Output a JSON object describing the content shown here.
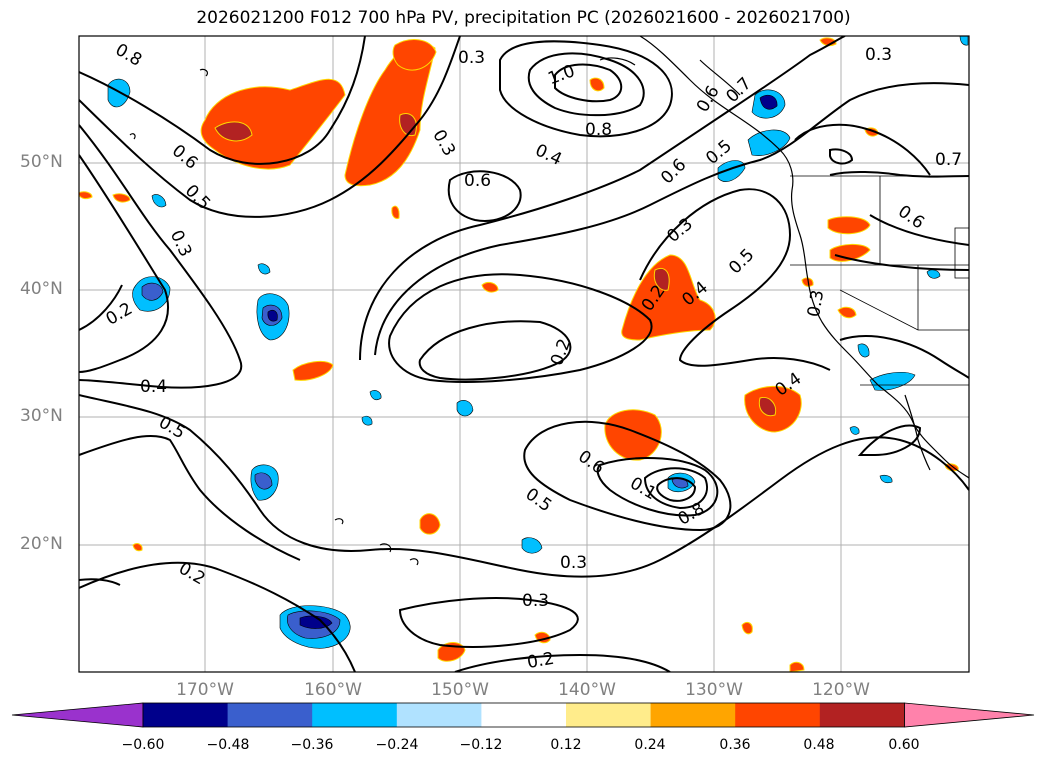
{
  "title": "2026021200 F012 700 hPa PV, precipitation PC (2026021600 - 2026021700)",
  "map": {
    "lat_labels": [
      "50°N",
      "40°N",
      "30°N",
      "20°N"
    ],
    "lon_labels": [
      "170°W",
      "160°W",
      "150°W",
      "140°W",
      "130°W",
      "120°W"
    ],
    "contour_labels": [
      "0.8",
      "0.6",
      "0.5",
      "0.3",
      "0.2",
      "0.4",
      "0.5",
      "0.2",
      "0.3",
      "0.3",
      "0.6",
      "1.0",
      "0.8",
      "0.4",
      "0.3",
      "0.6",
      "0.7",
      "0.6",
      "0.5",
      "0.5",
      "0.3",
      "0.4",
      "0.2",
      "0.2",
      "0.4",
      "0.6",
      "0.5",
      "0.8",
      "0.3",
      "0.3",
      "0.2",
      "0.3",
      "0.7",
      "0.6",
      "0.1"
    ],
    "colors": {
      "contour": "#000000",
      "gridline": "#b0b0b0",
      "coast": "#000000"
    }
  },
  "colorbar": {
    "ticks": [
      "−0.60",
      "−0.48",
      "−0.36",
      "−0.24",
      "−0.12",
      "0.12",
      "0.24",
      "0.36",
      "0.48",
      "0.60"
    ],
    "colors": [
      "#9a32cd",
      "#00008b",
      "#3a5fcd",
      "#00bfff",
      "#b0e2ff",
      "#ffffff",
      "#ffec8b",
      "#ffa500",
      "#ff4500",
      "#b22222",
      "#ff82ab"
    ]
  }
}
